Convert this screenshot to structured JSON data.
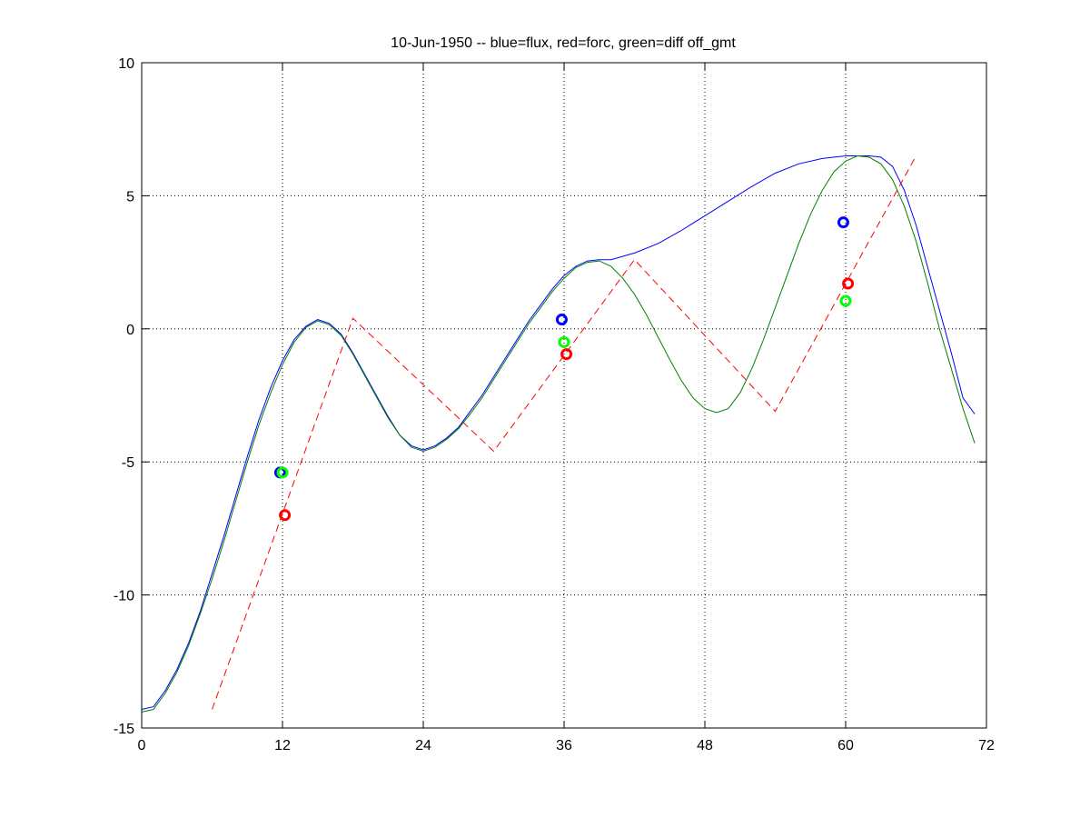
{
  "chart_data": {
    "type": "line",
    "title": "10-Jun-1950 -- blue=flux, red=forc, green=diff off_gmt",
    "xlabel": "",
    "ylabel": "",
    "xlim": [
      0,
      72
    ],
    "ylim": [
      -15,
      10
    ],
    "xticks": [
      0,
      12,
      24,
      36,
      48,
      60,
      72
    ],
    "yticks": [
      -15,
      -10,
      -5,
      0,
      5,
      10
    ],
    "grid": true,
    "colors": {
      "flux": "#0000ff",
      "forc": "#ff0000",
      "diff": "#008000",
      "diff_marker": "#00ff00"
    },
    "series": [
      {
        "name": "flux",
        "style": "solid",
        "x": [
          0,
          1,
          2,
          3,
          4,
          5,
          6,
          7,
          8,
          9,
          10,
          11,
          12,
          13,
          14,
          15,
          16,
          17,
          18,
          19,
          20,
          21,
          22,
          23,
          24,
          25,
          26,
          27,
          28,
          29,
          30,
          31,
          32,
          33,
          34,
          35,
          36,
          37,
          38,
          39,
          40,
          42,
          44,
          46,
          48,
          50,
          52,
          54,
          56,
          58,
          60,
          61,
          62,
          63,
          64,
          65,
          66,
          67,
          68,
          69,
          70,
          71
        ],
        "y": [
          -14.3,
          -14.2,
          -13.6,
          -12.8,
          -11.8,
          -10.6,
          -9.2,
          -7.8,
          -6.3,
          -4.8,
          -3.4,
          -2.2,
          -1.2,
          -0.4,
          0.1,
          0.35,
          0.2,
          -0.2,
          -0.9,
          -1.7,
          -2.5,
          -3.3,
          -4.0,
          -4.4,
          -4.55,
          -4.4,
          -4.1,
          -3.7,
          -3.1,
          -2.5,
          -1.8,
          -1.1,
          -0.4,
          0.3,
          0.9,
          1.5,
          2.0,
          2.35,
          2.55,
          2.6,
          2.6,
          2.85,
          3.2,
          3.7,
          4.25,
          4.8,
          5.35,
          5.85,
          6.2,
          6.4,
          6.5,
          6.5,
          6.5,
          6.45,
          6.1,
          5.2,
          3.9,
          2.3,
          0.7,
          -0.9,
          -2.6,
          -3.2
        ]
      },
      {
        "name": "forc",
        "style": "dashed",
        "x": [
          6,
          18,
          30,
          42,
          54,
          66
        ],
        "y": [
          -14.3,
          0.4,
          -4.6,
          2.6,
          -3.1,
          6.5
        ]
      },
      {
        "name": "diff",
        "style": "solid",
        "x": [
          0,
          1,
          2,
          3,
          4,
          5,
          6,
          7,
          8,
          9,
          10,
          11,
          12,
          13,
          14,
          15,
          16,
          17,
          18,
          19,
          20,
          21,
          22,
          23,
          24,
          25,
          26,
          27,
          28,
          29,
          30,
          31,
          32,
          33,
          34,
          35,
          36,
          37,
          38,
          39,
          40,
          41,
          42,
          43,
          44,
          45,
          46,
          47,
          48,
          49,
          50,
          51,
          52,
          53,
          54,
          55,
          56,
          57,
          58,
          59,
          60,
          61,
          62,
          63,
          64,
          65,
          66,
          67,
          68,
          69,
          70,
          71
        ],
        "y": [
          -14.4,
          -14.3,
          -13.7,
          -12.9,
          -11.9,
          -10.7,
          -9.4,
          -8.0,
          -6.5,
          -5.0,
          -3.6,
          -2.4,
          -1.35,
          -0.5,
          0.05,
          0.3,
          0.15,
          -0.25,
          -0.95,
          -1.75,
          -2.55,
          -3.35,
          -4.0,
          -4.45,
          -4.6,
          -4.45,
          -4.15,
          -3.75,
          -3.2,
          -2.6,
          -1.9,
          -1.2,
          -0.5,
          0.2,
          0.8,
          1.4,
          1.9,
          2.3,
          2.5,
          2.55,
          2.35,
          1.9,
          1.3,
          0.55,
          -0.3,
          -1.15,
          -1.95,
          -2.6,
          -3.0,
          -3.15,
          -3.0,
          -2.4,
          -1.5,
          -0.4,
          0.8,
          2.0,
          3.2,
          4.3,
          5.2,
          5.9,
          6.3,
          6.5,
          6.45,
          6.2,
          5.6,
          4.6,
          3.3,
          1.7,
          0.0,
          -1.5,
          -3.0,
          -4.3
        ]
      }
    ],
    "markers": [
      {
        "series": "flux",
        "points": [
          [
            11.8,
            -5.4
          ],
          [
            35.8,
            0.35
          ],
          [
            59.8,
            4.0
          ]
        ]
      },
      {
        "series": "forc",
        "points": [
          [
            12.2,
            -7.0
          ],
          [
            36.2,
            -0.95
          ],
          [
            60.2,
            1.7
          ]
        ]
      },
      {
        "series": "diff",
        "points": [
          [
            12.0,
            -5.4
          ],
          [
            36.0,
            -0.5
          ],
          [
            60.0,
            1.05
          ]
        ]
      }
    ]
  }
}
